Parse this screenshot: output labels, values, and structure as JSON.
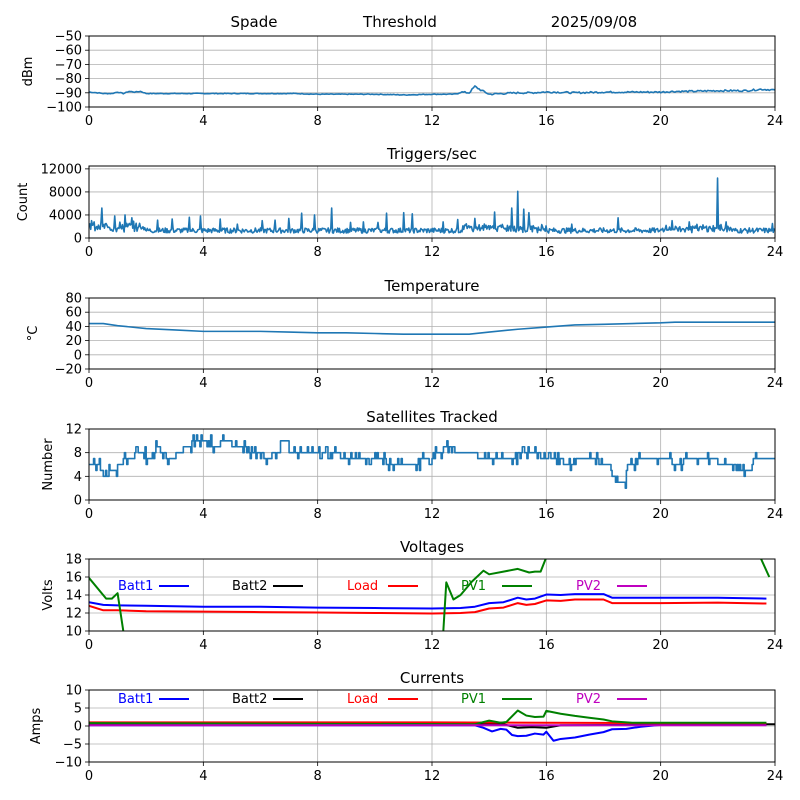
{
  "header": {
    "station": "Spade",
    "mode": "Threshold",
    "date": "2025/09/08"
  },
  "chart_data": [
    {
      "id": "signal",
      "type": "line",
      "title": "",
      "xlabel": "",
      "ylabel": "dBm",
      "xlim": [
        0,
        24
      ],
      "ylim": [
        -100,
        -50
      ],
      "xticks": [
        0,
        4,
        8,
        12,
        16,
        20,
        24
      ],
      "yticks": [
        -100,
        -90,
        -80,
        -70,
        -60,
        -50
      ],
      "ytick_labels": [
        "−100",
        "−90",
        "−80",
        "−70",
        "−60",
        "−50"
      ],
      "grid": true,
      "series": [
        {
          "name": "dBm",
          "color": "#1f77b4",
          "x": [
            0,
            0.3,
            0.5,
            0.8,
            1.0,
            1.2,
            1.4,
            1.6,
            1.8,
            2.0,
            2.4,
            4,
            6,
            7.2,
            8,
            10,
            11,
            12,
            12.8,
            13.0,
            13.3,
            13.5,
            13.7,
            14.0,
            14.5,
            15,
            15.5,
            15.9,
            16.3,
            17,
            18,
            19,
            20,
            20.5,
            21,
            22,
            22.5,
            23,
            23.5,
            24
          ],
          "y": [
            -89.5,
            -90,
            -90.5,
            -90.5,
            -89.5,
            -90.5,
            -89,
            -89.5,
            -89,
            -90.5,
            -90.5,
            -90.5,
            -90.5,
            -90.5,
            -91,
            -91,
            -91.5,
            -91,
            -91,
            -89.5,
            -90,
            -85.5,
            -88,
            -91,
            -90.5,
            -90,
            -90,
            -89.5,
            -89.5,
            -90,
            -89.5,
            -89.5,
            -89.5,
            -89,
            -89,
            -88.5,
            -88.5,
            -88.5,
            -87.5,
            -88
          ]
        }
      ]
    },
    {
      "id": "triggers",
      "type": "line",
      "title": "Triggers/sec",
      "xlabel": "",
      "ylabel": "Count",
      "xlim": [
        0,
        24
      ],
      "ylim": [
        0,
        12500
      ],
      "xticks": [
        0,
        4,
        8,
        12,
        16,
        20,
        24
      ],
      "yticks": [
        0,
        4000,
        8000,
        12000
      ],
      "ytick_labels": [
        "0",
        "4000",
        "8000",
        "12000"
      ],
      "grid": true,
      "series": [
        {
          "name": "Count",
          "color": "#1f77b4",
          "baseline": 1300,
          "spikes": [
            [
              0.1,
              3000
            ],
            [
              0.45,
              5200
            ],
            [
              0.9,
              3800
            ],
            [
              1.25,
              4000
            ],
            [
              1.5,
              3500
            ],
            [
              2.4,
              3100
            ],
            [
              2.9,
              3300
            ],
            [
              3.5,
              3600
            ],
            [
              3.9,
              3800
            ],
            [
              4.6,
              3300
            ],
            [
              5.2,
              2400
            ],
            [
              6.05,
              3000
            ],
            [
              6.5,
              3100
            ],
            [
              7.0,
              3400
            ],
            [
              7.45,
              4300
            ],
            [
              7.9,
              4000
            ],
            [
              8.5,
              5200
            ],
            [
              9.15,
              2700
            ],
            [
              9.6,
              2800
            ],
            [
              10.1,
              2700
            ],
            [
              10.4,
              4300
            ],
            [
              11.0,
              4400
            ],
            [
              11.3,
              4200
            ],
            [
              12.4,
              2800
            ],
            [
              12.9,
              3200
            ],
            [
              13.5,
              3400
            ],
            [
              14.2,
              4500
            ],
            [
              14.8,
              5200
            ],
            [
              15.0,
              8100
            ],
            [
              15.2,
              5000
            ],
            [
              15.4,
              4400
            ],
            [
              16.9,
              2400
            ],
            [
              18.5,
              3500
            ],
            [
              20.4,
              3000
            ],
            [
              21.0,
              2800
            ],
            [
              22.0,
              10400
            ],
            [
              22.3,
              2800
            ],
            [
              23.9,
              2500
            ]
          ]
        }
      ]
    },
    {
      "id": "temperature",
      "type": "line",
      "title": "Temperature",
      "xlabel": "",
      "ylabel": "°C",
      "xlim": [
        0,
        24
      ],
      "ylim": [
        -20,
        80
      ],
      "xticks": [
        0,
        4,
        8,
        12,
        16,
        20,
        24
      ],
      "yticks": [
        -20,
        0,
        20,
        40,
        60,
        80
      ],
      "ytick_labels": [
        "−20",
        "0",
        "20",
        "40",
        "60",
        "80"
      ],
      "grid": true,
      "series": [
        {
          "name": "Temperature",
          "color": "#1f77b4",
          "x": [
            0,
            0.5,
            1,
            1.5,
            2,
            3,
            4,
            5,
            6,
            7,
            8,
            9,
            10,
            11,
            12,
            13,
            13.3,
            14,
            15,
            16,
            17,
            18,
            19,
            20,
            20.5,
            22,
            24
          ],
          "y": [
            44,
            44,
            41,
            39,
            37,
            35,
            33,
            33,
            33,
            32,
            31,
            31,
            30,
            29,
            29,
            29,
            29,
            32,
            36,
            39,
            42,
            43,
            44,
            45,
            46,
            46,
            46
          ]
        }
      ]
    },
    {
      "id": "satellites",
      "type": "line",
      "title": "Satellites Tracked",
      "xlabel": "",
      "ylabel": "Number",
      "xlim": [
        0,
        24
      ],
      "ylim": [
        0,
        12
      ],
      "xticks": [
        0,
        4,
        8,
        12,
        16,
        20,
        24
      ],
      "yticks": [
        0,
        4,
        8,
        12
      ],
      "ytick_labels": [
        "0",
        "4",
        "8",
        "12"
      ],
      "grid": true,
      "series": [
        {
          "name": "Satellites",
          "color": "#1f77b4",
          "x": [
            0,
            0.4,
            0.5,
            0.7,
            0.8,
            1.0,
            1.2,
            1.4,
            1.6,
            1.8,
            2.0,
            2.3,
            2.5,
            2.7,
            2.8,
            3.0,
            3.3,
            3.6,
            4.0,
            4.3,
            4.6,
            5.0,
            5.3,
            5.6,
            6.0,
            6.4,
            6.7,
            7.0,
            7.3,
            7.6,
            8.0,
            8.4,
            8.8,
            9.2,
            9.6,
            10.0,
            10.4,
            10.8,
            11.2,
            11.6,
            11.9,
            12.0,
            12.4,
            12.8,
            13.2,
            13.6,
            14.0,
            14.4,
            14.8,
            15.0,
            15.4,
            15.8,
            16.2,
            16.6,
            17.0,
            17.4,
            17.8,
            18.0,
            18.3,
            18.5,
            18.8,
            19.2,
            19.6,
            20.0,
            20.4,
            20.8,
            21.2,
            21.6,
            22.0,
            22.4,
            22.8,
            23.2,
            23.6,
            24.0
          ],
          "y": [
            6,
            5,
            4,
            5,
            5,
            6,
            7,
            7,
            8,
            8,
            7,
            9,
            8,
            6,
            7,
            8,
            9,
            10,
            10,
            9,
            10,
            9,
            9,
            8,
            7,
            8,
            10,
            8,
            8,
            8,
            8,
            8,
            7,
            7,
            7,
            7,
            6,
            6,
            6,
            7,
            6,
            8,
            9,
            8,
            8,
            7,
            7,
            7,
            7,
            8,
            8,
            7,
            7,
            6,
            7,
            7,
            6,
            6,
            4,
            3,
            6,
            7,
            7,
            7,
            6,
            7,
            7,
            7,
            6,
            6,
            5,
            7,
            7,
            6
          ]
        }
      ]
    },
    {
      "id": "voltages",
      "type": "line",
      "title": "Voltages",
      "xlabel": "",
      "ylabel": "Volts",
      "xlim": [
        0,
        24
      ],
      "ylim": [
        10,
        18
      ],
      "xticks": [
        0,
        4,
        8,
        12,
        16,
        20,
        24
      ],
      "yticks": [
        10,
        12,
        14,
        16,
        18
      ],
      "ytick_labels": [
        "10",
        "12",
        "14",
        "16",
        "18"
      ],
      "grid": true,
      "legend": "top, horizontal inside axes",
      "series": [
        {
          "name": "Batt1",
          "color": "#0000ff",
          "x": [
            0,
            0.5,
            1,
            2,
            4,
            6,
            8,
            10,
            12,
            13,
            13.5,
            14,
            14.5,
            15,
            15.3,
            15.6,
            16,
            16.5,
            17,
            17.5,
            18,
            18.3,
            19,
            20,
            22,
            23.7
          ],
          "y": [
            13.2,
            12.9,
            12.85,
            12.8,
            12.7,
            12.7,
            12.6,
            12.55,
            12.5,
            12.55,
            12.7,
            13.1,
            13.2,
            13.7,
            13.5,
            13.6,
            14.05,
            14.0,
            14.1,
            14.1,
            14.1,
            13.7,
            13.7,
            13.7,
            13.7,
            13.6
          ]
        },
        {
          "name": "Batt2",
          "color": "#000000",
          "x": [],
          "y": []
        },
        {
          "name": "Load",
          "color": "#ff0000",
          "x": [
            0,
            0.5,
            1,
            2,
            4,
            6,
            8,
            10,
            12,
            13,
            13.5,
            14,
            14.5,
            15,
            15.3,
            15.6,
            16,
            16.5,
            17,
            17.5,
            18,
            18.3,
            19,
            20,
            22,
            23.7
          ],
          "y": [
            12.8,
            12.3,
            12.3,
            12.2,
            12.15,
            12.1,
            12.05,
            12.0,
            11.95,
            12.0,
            12.1,
            12.5,
            12.6,
            13.1,
            12.9,
            13.0,
            13.4,
            13.35,
            13.5,
            13.5,
            13.5,
            13.1,
            13.1,
            13.1,
            13.15,
            13.05
          ]
        },
        {
          "name": "PV1",
          "color": "#008000",
          "x": [
            0,
            0.6,
            0.8,
            1.0,
            1.2,
            1.5,
            12.3,
            12.5,
            12.75,
            13.0,
            13.4,
            13.8,
            14.0,
            14.5,
            15.0,
            15.4,
            15.6,
            15.8,
            16.0,
            16.3,
            23.3,
            23.8
          ],
          "y": [
            15.9,
            13.6,
            13.6,
            14.2,
            10.0,
            5.0,
            5.0,
            15.4,
            13.5,
            14.0,
            15.5,
            16.7,
            16.3,
            16.6,
            16.9,
            16.5,
            16.6,
            16.6,
            18.2,
            19.5,
            19.5,
            16.0
          ]
        },
        {
          "name": "PV2",
          "color": "#bf00bf",
          "x": [],
          "y": []
        }
      ]
    },
    {
      "id": "currents",
      "type": "line",
      "title": "Currents",
      "xlabel": "",
      "ylabel": "Amps",
      "xlim": [
        0,
        24
      ],
      "ylim": [
        -10,
        10
      ],
      "xticks": [
        0,
        4,
        8,
        12,
        16,
        20,
        24
      ],
      "yticks": [
        -10,
        -5,
        0,
        5,
        10
      ],
      "ytick_labels": [
        "−10",
        "−5",
        "0",
        "5",
        "10"
      ],
      "grid": true,
      "legend": "top, horizontal inside axes",
      "series": [
        {
          "name": "Batt1",
          "color": "#0000ff",
          "x": [
            0,
            13.5,
            13.8,
            14.1,
            14.4,
            14.6,
            14.8,
            15.0,
            15.3,
            15.6,
            15.9,
            16.0,
            16.25,
            16.5,
            17.0,
            17.5,
            18.0,
            18.3,
            18.8,
            19.3,
            20.0,
            23.7
          ],
          "y": [
            0.2,
            0.2,
            -0.5,
            -1.5,
            -0.8,
            -1.0,
            -2.5,
            -2.8,
            -2.7,
            -2.1,
            -2.4,
            -1.6,
            -4.1,
            -3.6,
            -3.2,
            -2.4,
            -1.7,
            -0.9,
            -0.8,
            -0.2,
            0.3,
            0.3
          ]
        },
        {
          "name": "Batt2",
          "color": "#000000",
          "x": [
            0,
            14.5,
            15.0,
            15.5,
            16.0,
            16.5,
            24
          ],
          "y": [
            0.5,
            0.5,
            -0.5,
            -0.3,
            -0.5,
            0.2,
            0.5
          ]
        },
        {
          "name": "Load",
          "color": "#ff0000",
          "x": [
            0,
            4,
            8,
            12,
            16,
            20,
            23.7
          ],
          "y": [
            1.0,
            1.0,
            1.0,
            1.0,
            0.9,
            0.8,
            0.8
          ]
        },
        {
          "name": "PV1",
          "color": "#008000",
          "x": [
            0,
            13.5,
            14.0,
            14.4,
            14.6,
            15.0,
            15.3,
            15.6,
            15.9,
            16.0,
            16.5,
            17.0,
            17.5,
            18.0,
            18.3,
            19.0,
            20.0,
            23.7
          ],
          "y": [
            0.8,
            0.5,
            1.5,
            0.9,
            1.1,
            4.3,
            2.9,
            2.5,
            2.6,
            4.2,
            3.4,
            2.8,
            2.3,
            1.8,
            1.3,
            0.9,
            0.9,
            0.9
          ]
        },
        {
          "name": "PV2",
          "color": "#bf00bf",
          "x": [
            0,
            4,
            8,
            12,
            16,
            20,
            23.7
          ],
          "y": [
            0.2,
            0.2,
            0.2,
            0.2,
            0.2,
            0.2,
            0.2
          ]
        }
      ]
    }
  ]
}
